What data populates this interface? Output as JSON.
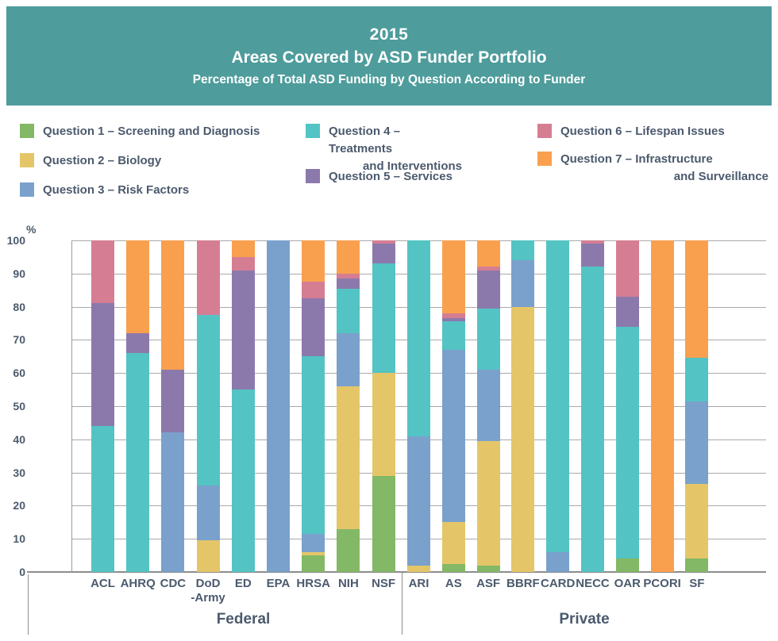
{
  "colors": {
    "banner_background": "#4E9C9C",
    "title_text": "#FFFFFF",
    "label_text": "#4B5A6D",
    "gridline": "#A9A9A9",
    "axis_line": "#8D8D8D"
  },
  "chart_data": {
    "type": "bar",
    "stacked": true,
    "grid": true,
    "legend_position": "top",
    "titles": {
      "year": "2015",
      "main": "Areas Covered by ASD Funder Portfolio",
      "sub": "Percentage of Total ASD Funding by Question According to Funder"
    },
    "ylabel": "%",
    "ylim": [
      0,
      100
    ],
    "yticks": [
      0,
      10,
      20,
      30,
      40,
      50,
      60,
      70,
      80,
      90,
      100
    ],
    "questions": [
      {
        "id": "q1",
        "label": "Question 1 – Screening and Diagnosis",
        "label_lines": [
          "Question 1 – Screening and Diagnosis"
        ],
        "color": "#83B866"
      },
      {
        "id": "q2",
        "label": "Question 2 – Biology",
        "label_lines": [
          "Question 2 – Biology"
        ],
        "color": "#E4C669"
      },
      {
        "id": "q3",
        "label": "Question 3 – Risk Factors",
        "label_lines": [
          "Question 3 – Risk Factors"
        ],
        "color": "#7AA1CC"
      },
      {
        "id": "q4",
        "label": "Question 4 – Treatments and Interventions",
        "label_lines": [
          "Question 4 – Treatments",
          "and Interventions"
        ],
        "color": "#53C4C3"
      },
      {
        "id": "q5",
        "label": "Question 5 – Services",
        "label_lines": [
          "Question 5 – Services"
        ],
        "color": "#8C79AC"
      },
      {
        "id": "q6",
        "label": "Question 6 – Lifespan Issues",
        "label_lines": [
          "Question 6 – Lifespan Issues"
        ],
        "color": "#D57E93"
      },
      {
        "id": "q7",
        "label": "Question 7 – Infrastructure and Surveillance",
        "label_lines": [
          "Question 7 – Infrastructure",
          "and Surveillance"
        ],
        "color": "#F9A04F"
      }
    ],
    "legend_columns": [
      [
        "q1",
        "q2",
        "q3"
      ],
      [
        "q4",
        "q5"
      ],
      [
        "q6",
        "q7"
      ]
    ],
    "groups": [
      {
        "label": "Federal",
        "funders": [
          {
            "name": "ACL",
            "label_lines": [
              "ACL"
            ],
            "values": {
              "q4": 44,
              "q5": 37,
              "q6": 19
            }
          },
          {
            "name": "AHRQ",
            "label_lines": [
              "AHRQ"
            ],
            "values": {
              "q4": 66,
              "q5": 6,
              "q7": 28
            }
          },
          {
            "name": "CDC",
            "label_lines": [
              "CDC"
            ],
            "values": {
              "q3": 42,
              "q5": 19,
              "q7": 39
            }
          },
          {
            "name": "DoD-Army",
            "label_lines": [
              "DoD",
              "-Army"
            ],
            "values": {
              "q2": 9.5,
              "q3": 16.5,
              "q4": 51.5,
              "q6": 22.5
            }
          },
          {
            "name": "ED",
            "label_lines": [
              "ED"
            ],
            "values": {
              "q4": 55,
              "q5": 36,
              "q6": 4,
              "q7": 5
            }
          },
          {
            "name": "EPA",
            "label_lines": [
              "EPA"
            ],
            "values": {
              "q3": 100
            }
          },
          {
            "name": "HRSA",
            "label_lines": [
              "HRSA"
            ],
            "values": {
              "q1": 5,
              "q2": 1,
              "q3": 5.5,
              "q4": 53.5,
              "q5": 17.5,
              "q6": 5,
              "q7": 12.5
            }
          },
          {
            "name": "NIH",
            "label_lines": [
              "NIH"
            ],
            "values": {
              "q1": 13,
              "q2": 43,
              "q3": 16,
              "q4": 13.5,
              "q5": 3,
              "q6": 1.5,
              "q7": 10
            }
          },
          {
            "name": "NSF",
            "label_lines": [
              "NSF"
            ],
            "values": {
              "q1": 29,
              "q2": 31,
              "q4": 33,
              "q5": 6,
              "q6": 1
            }
          }
        ]
      },
      {
        "label": "Private",
        "funders": [
          {
            "name": "ARI",
            "label_lines": [
              "ARI"
            ],
            "values": {
              "q2": 2,
              "q3": 39,
              "q4": 59
            }
          },
          {
            "name": "AS",
            "label_lines": [
              "AS"
            ],
            "values": {
              "q1": 2.5,
              "q2": 12.5,
              "q3": 52,
              "q4": 8.5,
              "q5": 1,
              "q6": 1.5,
              "q7": 22
            }
          },
          {
            "name": "ASF",
            "label_lines": [
              "ASF"
            ],
            "values": {
              "q1": 2,
              "q2": 37.5,
              "q3": 21.5,
              "q4": 18.5,
              "q5": 11.5,
              "q6": 1,
              "q7": 8
            }
          },
          {
            "name": "BBRF",
            "label_lines": [
              "BBRF"
            ],
            "values": {
              "q2": 80,
              "q3": 14,
              "q4": 6
            }
          },
          {
            "name": "CARD",
            "label_lines": [
              "CARD"
            ],
            "values": {
              "q3": 6,
              "q4": 94
            }
          },
          {
            "name": "NECC",
            "label_lines": [
              "NECC"
            ],
            "values": {
              "q4": 92,
              "q5": 7,
              "q6": 1
            }
          },
          {
            "name": "OAR",
            "label_lines": [
              "OAR"
            ],
            "values": {
              "q1": 4,
              "q4": 70,
              "q5": 9,
              "q6": 17
            }
          },
          {
            "name": "PCORI",
            "label_lines": [
              "PCORI"
            ],
            "values": {
              "q7": 100
            }
          },
          {
            "name": "SF",
            "label_lines": [
              "SF"
            ],
            "values": {
              "q1": 4,
              "q2": 22.5,
              "q3": 25,
              "q4": 13,
              "q7": 35.5
            }
          }
        ]
      }
    ]
  }
}
